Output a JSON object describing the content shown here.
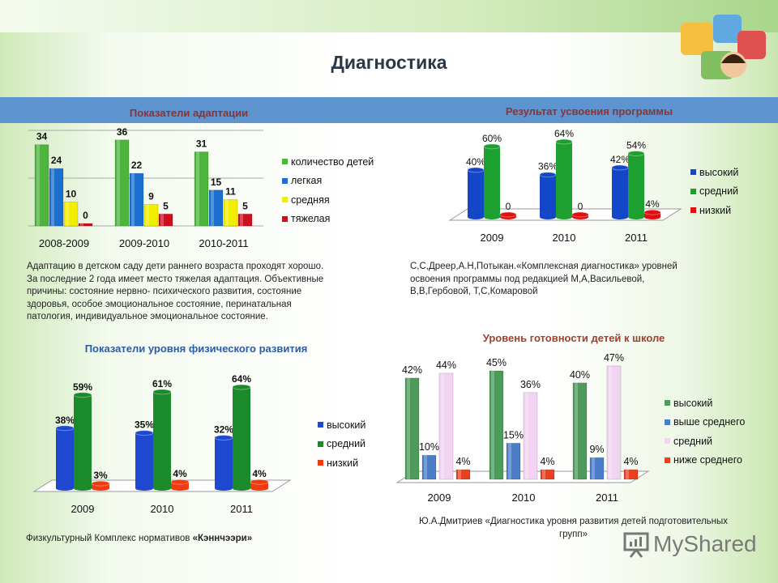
{
  "slide_title": "Диагностика",
  "chart_data": [
    {
      "type": "bar",
      "title": "Показатели адаптации",
      "categories": [
        "2008-2009",
        "2009-2010",
        "2010-2011"
      ],
      "ylim": [
        0,
        40
      ],
      "grid": true,
      "legend_placement": "right",
      "series": [
        {
          "name": "количество детей",
          "color": "#4db43c",
          "values": [
            34,
            36,
            31
          ],
          "labels": [
            "34",
            "36",
            "31"
          ]
        },
        {
          "name": "легкая",
          "color": "#1a6fcf",
          "values": [
            24,
            22,
            15
          ],
          "labels": [
            "24",
            "22",
            "15"
          ]
        },
        {
          "name": "средняя",
          "color": "#f2ee00",
          "values": [
            10,
            9,
            11
          ],
          "labels": [
            "10",
            "9",
            "11"
          ]
        },
        {
          "name": "тяжелая",
          "color": "#cc1020",
          "values": [
            0,
            5,
            5
          ],
          "labels": [
            "0",
            "5",
            "5"
          ]
        }
      ]
    },
    {
      "type": "bar",
      "title": "Результат усвоения программы",
      "categories": [
        "2009",
        "2010",
        "2011"
      ],
      "grid": false,
      "legend_placement": "right",
      "series": [
        {
          "name": "высокий",
          "color": "#1446c8",
          "values": [
            40,
            36,
            42
          ],
          "labels": [
            "40%",
            "36%",
            "42%"
          ]
        },
        {
          "name": "средний",
          "color": "#1ea030",
          "values": [
            60,
            64,
            54
          ],
          "labels": [
            "60%",
            "64%",
            "54%"
          ]
        },
        {
          "name": "низкий",
          "color": "#e01010",
          "values": [
            0,
            0,
            4
          ],
          "labels": [
            "0",
            "0",
            "4%"
          ]
        }
      ]
    },
    {
      "type": "bar",
      "title": "Показатели уровня физического развития",
      "categories": [
        "2009",
        "2010",
        "2011"
      ],
      "grid": false,
      "legend_placement": "right",
      "series": [
        {
          "name": "высокий",
          "color": "#1f48d0",
          "values": [
            38,
            35,
            32
          ],
          "labels": [
            "38%",
            "35%",
            "32%"
          ]
        },
        {
          "name": "средний",
          "color": "#1b8a2a",
          "values": [
            59,
            61,
            64
          ],
          "labels": [
            "59%",
            "61%",
            "64%"
          ]
        },
        {
          "name": "низкий",
          "color": "#f03a10",
          "values": [
            3,
            4,
            4
          ],
          "labels": [
            "3%",
            "4%",
            "4%"
          ]
        }
      ]
    },
    {
      "type": "bar",
      "title": "Уровень готовности детей к школе",
      "categories": [
        "2009",
        "2010",
        "2011"
      ],
      "grid": false,
      "legend_placement": "right",
      "series": [
        {
          "name": "высокий",
          "color": "#4e9a5a",
          "values": [
            42,
            45,
            40
          ],
          "labels": [
            "42%",
            "45%",
            "40%"
          ]
        },
        {
          "name": "выше среднего",
          "color": "#4a7cc8",
          "values": [
            10,
            15,
            9
          ],
          "labels": [
            "10%",
            "15%",
            "9%"
          ]
        },
        {
          "name": "средний",
          "color": "#f2d4f2",
          "values": [
            44,
            36,
            47
          ],
          "labels": [
            "44%",
            "36%",
            "47%"
          ]
        },
        {
          "name": "ниже среднего",
          "color": "#e84020",
          "values": [
            4,
            4,
            4
          ],
          "labels": [
            "4%",
            "4%",
            "4%"
          ]
        }
      ]
    }
  ],
  "texts": {
    "adaptation_note": [
      "Адаптацию в детском саду дети раннего возраста проходят хорошо.",
      "За последние 2 года имеет место тяжелая адаптация.  Объективные",
      "причины:  состояние нервно- психического развития, состояние",
      "здоровья, особое эмоциональное состояние, перинатальная",
      "патология, индивидуальное эмоциональное состояние."
    ],
    "program_source": [
      "С,С,Дреер,А.Н,Потыкан.«Комплексная диагностика» уровней",
      "освоения программы под редакцией  М,А,Васильевой,",
      "В,В,Гербовой, Т,С,Комаровой"
    ],
    "physical_source_prefix": "Физкультурный Комплекс нормативов ",
    "physical_source_bold": "«Кэннчээри»",
    "school_source": [
      "Ю.А.Дмитриев «Диагностика уровня развития детей подготовительных",
      "групп»"
    ]
  },
  "watermark": "MyShared"
}
